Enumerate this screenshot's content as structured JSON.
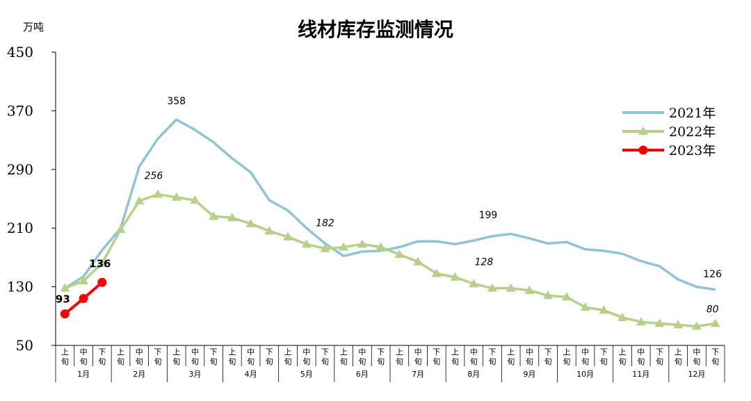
{
  "chart_data": {
    "type": "line",
    "title": "线材库存监测情况",
    "ylabel": "万吨",
    "xlabel": "",
    "ylim": [
      50,
      450
    ],
    "yticks": [
      50,
      130,
      210,
      290,
      370,
      450
    ],
    "grid": false,
    "legend_position": "right",
    "day_labels": [
      "上旬",
      "中旬",
      "下旬"
    ],
    "months": [
      "1月",
      "2月",
      "3月",
      "4月",
      "5月",
      "6月",
      "7月",
      "8月",
      "9月",
      "10月",
      "11月",
      "12月"
    ],
    "series": [
      {
        "name": "2021年",
        "color": "#8ec4d8",
        "marker": "none",
        "values": [
          128,
          144,
          180,
          210,
          294,
          332,
          358,
          344,
          327,
          305,
          286,
          248,
          234,
          210,
          189,
          172,
          178,
          179,
          184,
          192,
          192,
          188,
          193,
          199,
          202,
          196,
          189,
          191,
          181,
          179,
          175,
          165,
          158,
          140,
          130,
          126
        ]
      },
      {
        "name": "2022年",
        "color": "#b3d288",
        "marker": "triangle",
        "values": [
          128,
          138,
          162,
          208,
          247,
          256,
          252,
          248,
          226,
          224,
          216,
          206,
          198,
          188,
          182,
          184,
          188,
          184,
          174,
          164,
          148,
          143,
          134,
          128,
          128,
          125,
          118,
          116,
          102,
          98,
          88,
          82,
          80,
          78,
          76,
          80
        ]
      },
      {
        "name": "2023年",
        "color": "#ff0000",
        "marker": "circle",
        "values": [
          93,
          114,
          136
        ]
      }
    ],
    "annotations": [
      {
        "series": 0,
        "index": 6,
        "text": "358",
        "style": "normal"
      },
      {
        "series": 0,
        "index": 23,
        "text": "199",
        "style": "normal"
      },
      {
        "series": 0,
        "index": 35,
        "text": "126",
        "style": "normal"
      },
      {
        "series": 1,
        "index": 5,
        "text": "256",
        "style": "italic"
      },
      {
        "series": 1,
        "index": 14,
        "text": "182",
        "style": "italic"
      },
      {
        "series": 1,
        "index": 23,
        "text": "128",
        "style": "italic"
      },
      {
        "series": 1,
        "index": 35,
        "text": "80",
        "style": "italic"
      },
      {
        "series": 2,
        "index": 0,
        "text": "93",
        "style": "bold"
      },
      {
        "series": 2,
        "index": 2,
        "text": "136",
        "style": "bold"
      }
    ]
  }
}
